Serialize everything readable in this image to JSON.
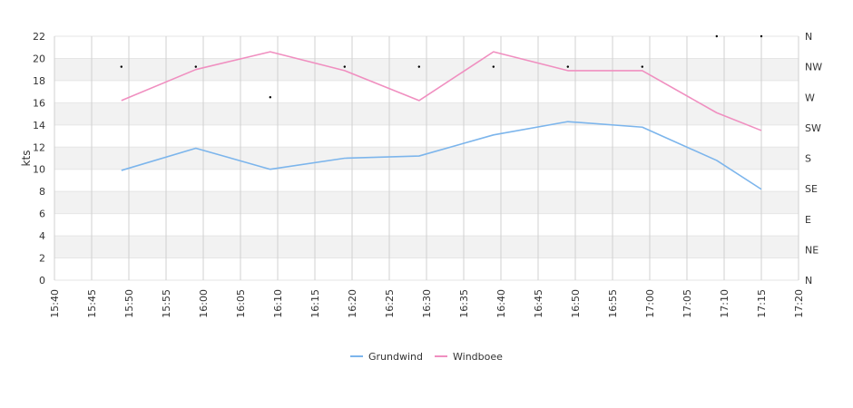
{
  "chart_data": {
    "type": "line",
    "ylabel": "kts",
    "ylim": [
      0,
      22
    ],
    "y_ticks": [
      "0",
      "2",
      "4",
      "6",
      "8",
      "10",
      "12",
      "14",
      "16",
      "18",
      "20",
      "22"
    ],
    "y2_ticks": [
      "N",
      "NE",
      "E",
      "SE",
      "S",
      "SW",
      "W",
      "NW",
      "N"
    ],
    "x_ticks": [
      "15:40",
      "15:45",
      "15:50",
      "15:55",
      "16:00",
      "16:05",
      "16:10",
      "16:15",
      "16:20",
      "16:25",
      "16:30",
      "16:35",
      "16:40",
      "16:45",
      "16:50",
      "16:55",
      "17:00",
      "17:05",
      "17:10",
      "17:15",
      "17:20"
    ],
    "x": [
      "15:49",
      "15:59",
      "16:09",
      "16:19",
      "16:29",
      "16:39",
      "16:49",
      "16:59",
      "17:09",
      "17:15"
    ],
    "series": [
      {
        "name": "Grundwind",
        "color": "#7cb5ec",
        "values": [
          9.9,
          11.9,
          10.0,
          11.0,
          11.2,
          13.1,
          14.3,
          13.8,
          10.8,
          8.2
        ]
      },
      {
        "name": "Windboee",
        "color": "#f08fc0",
        "values": [
          16.2,
          19.0,
          20.6,
          18.9,
          16.2,
          20.6,
          18.9,
          18.9,
          15.1,
          13.5
        ]
      }
    ],
    "direction": {
      "x": [
        "15:49",
        "15:59",
        "16:09",
        "16:19",
        "16:29",
        "16:39",
        "16:49",
        "16:59",
        "17:09",
        "17:15"
      ],
      "values": [
        "NW",
        "NW",
        "W",
        "NW",
        "NW",
        "NW",
        "NW",
        "NW",
        "N",
        "N"
      ]
    },
    "grid": true,
    "legend": "bottom-center"
  }
}
